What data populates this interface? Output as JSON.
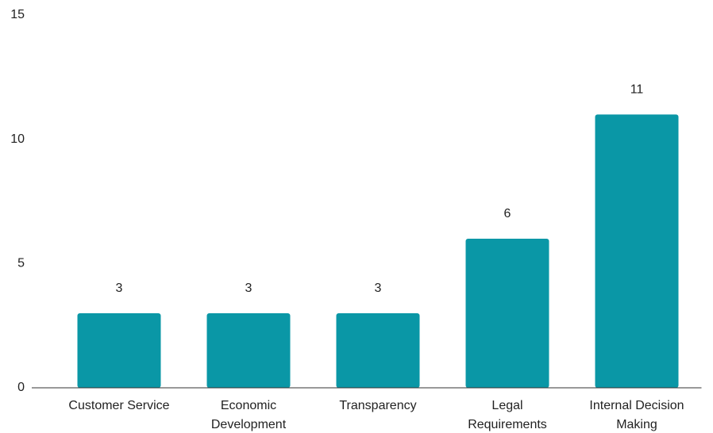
{
  "chart_data": {
    "type": "bar",
    "categories": [
      "Customer Service",
      "Economic Development",
      "Transparency",
      "Legal Requirements",
      "Internal Decision Making"
    ],
    "values": [
      3,
      3,
      3,
      6,
      11
    ],
    "color": "#0a97a6",
    "ylim": [
      0,
      15
    ],
    "yticks": [
      0,
      5,
      10,
      15
    ],
    "grid": false
  }
}
